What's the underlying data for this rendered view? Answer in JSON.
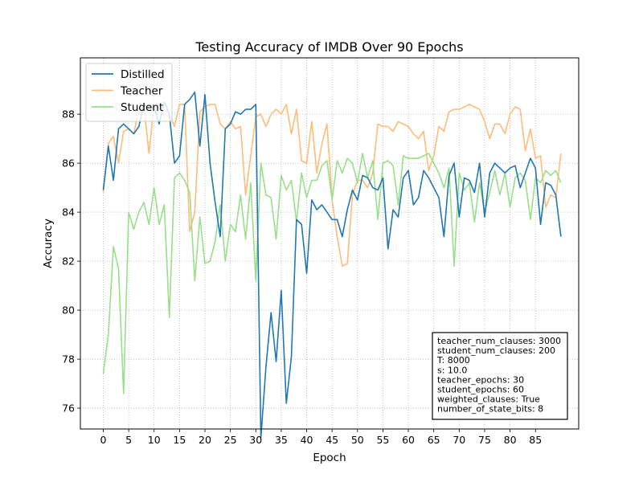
{
  "chart_data": {
    "type": "line",
    "title": "Testing Accuracy of IMDB Over 90 Epochs",
    "xlabel": "Epoch",
    "ylabel": "Accuracy",
    "xlim": [
      -4.5,
      93.5
    ],
    "ylim": [
      75.15,
      90.3
    ],
    "xticks": [
      0,
      5,
      10,
      15,
      20,
      25,
      30,
      35,
      40,
      45,
      50,
      55,
      60,
      65,
      70,
      75,
      80,
      85
    ],
    "yticks": [
      76,
      78,
      80,
      82,
      84,
      86,
      88
    ],
    "grid": true,
    "legend_position": "top-left",
    "series": [
      {
        "name": "Distilled",
        "color": "#1f77b4",
        "opacity": 1.0,
        "values": [
          84.9,
          86.7,
          85.3,
          87.4,
          87.6,
          87.4,
          87.2,
          87.5,
          88.4,
          88.2,
          88.3,
          87.6,
          88.5,
          88.0,
          86.0,
          86.3,
          88.4,
          88.6,
          88.9,
          86.7,
          88.8,
          86.0,
          84.4,
          83.0,
          87.4,
          87.6,
          88.1,
          88.0,
          88.2,
          88.2,
          88.4,
          74.8,
          77.7,
          79.9,
          77.9,
          80.8,
          76.2,
          78.1,
          83.7,
          83.5,
          81.5,
          84.5,
          84.1,
          84.3,
          84.0,
          83.7,
          83.7,
          83.0,
          84.1,
          84.9,
          84.5,
          85.5,
          85.4,
          85.0,
          84.9,
          85.4,
          82.5,
          84.1,
          83.8,
          85.4,
          85.7,
          84.3,
          84.6,
          85.7,
          85.4,
          85.0,
          84.6,
          83.0,
          85.5,
          86.0,
          83.8,
          85.4,
          85.3,
          84.8,
          86.0,
          83.8,
          85.6,
          86.0,
          85.8,
          85.6,
          85.8,
          85.9,
          85.0,
          85.6,
          86.2,
          85.8,
          83.5,
          85.2,
          85.1,
          84.7,
          83.0
        ]
      },
      {
        "name": "Teacher",
        "color": "#ffbb78",
        "opacity": 1.0,
        "values": [
          84.8,
          86.8,
          87.1,
          86.0,
          87.3,
          87.4,
          87.2,
          88.2,
          88.3,
          86.4,
          88.4,
          88.3,
          87.9,
          88.0,
          87.5,
          88.4,
          88.4,
          83.2,
          84.0,
          88.1,
          88.3,
          88.4,
          88.4,
          87.6,
          87.4,
          87.7,
          87.4,
          87.5,
          84.7,
          86.3,
          87.9,
          88.0,
          87.5,
          88.0,
          88.2,
          88.0,
          88.4,
          87.2,
          88.2,
          86.1,
          86.0,
          87.7,
          85.6,
          86.8,
          87.6,
          84.5,
          83.0,
          81.8,
          81.9,
          84.7,
          85.3,
          85.3,
          85.0,
          85.6,
          87.6,
          87.5,
          87.5,
          87.3,
          87.7,
          87.6,
          87.5,
          87.2,
          87.0,
          87.3,
          85.7,
          86.3,
          87.5,
          87.3,
          88.1,
          88.2,
          88.2,
          88.3,
          88.4,
          88.3,
          88.2,
          87.7,
          87.0,
          87.6,
          87.6,
          87.2,
          88.0,
          88.3,
          88.2,
          86.5,
          87.4,
          86.2,
          86.3,
          84.2,
          84.7,
          84.6,
          86.4
        ]
      },
      {
        "name": "Student",
        "color": "#98df8a",
        "opacity": 1.0,
        "values": [
          77.4,
          79.0,
          82.6,
          81.7,
          76.6,
          84.0,
          83.3,
          84.0,
          84.4,
          83.5,
          85.0,
          83.5,
          84.3,
          79.7,
          85.4,
          85.6,
          85.3,
          84.8,
          81.2,
          83.8,
          81.9,
          82.0,
          82.8,
          84.3,
          82.0,
          83.5,
          83.2,
          84.7,
          82.9,
          85.2,
          81.2,
          86.0,
          84.7,
          84.6,
          82.9,
          85.5,
          84.9,
          85.3,
          83.6,
          85.6,
          84.6,
          85.3,
          85.3,
          85.9,
          86.1,
          84.5,
          86.1,
          85.6,
          86.2,
          86.0,
          85.2,
          86.4,
          85.4,
          86.1,
          83.7,
          86.0,
          86.1,
          85.9,
          84.3,
          86.3,
          86.2,
          86.2,
          86.2,
          86.3,
          86.4,
          86.0,
          85.6,
          85.0,
          85.8,
          81.8,
          85.6,
          84.9,
          85.2,
          83.6,
          85.2,
          84.0,
          84.8,
          85.7,
          84.7,
          85.6,
          84.2,
          85.4,
          85.6,
          85.3,
          83.7,
          85.4,
          85.2,
          85.7,
          85.5,
          85.7,
          85.2
        ]
      }
    ],
    "annotation_box": {
      "lines": [
        "teacher_num_clauses: 3000",
        "student_num_clauses: 200",
        "T: 8000",
        "s: 10.0",
        "teacher_epochs: 30",
        "student_epochs: 60",
        "weighted_clauses: True",
        "number_of_state_bits: 8"
      ]
    }
  }
}
